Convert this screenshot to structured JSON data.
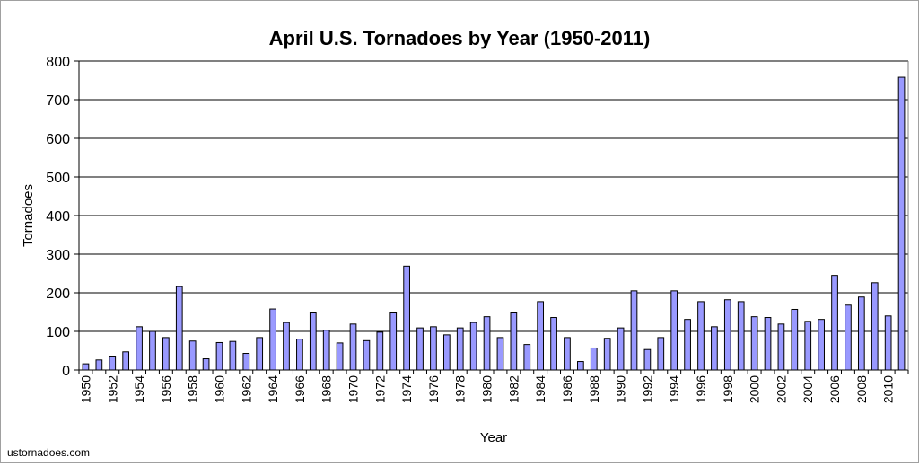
{
  "chart_data": {
    "type": "bar",
    "title": "April U.S. Tornadoes by Year (1950-2011)",
    "xlabel": "Year",
    "ylabel": "Tornadoes",
    "ylim": [
      0,
      800
    ],
    "yticks": [
      0,
      100,
      200,
      300,
      400,
      500,
      600,
      700,
      800
    ],
    "grid": true,
    "bar_color": "#9999ff",
    "categories": [
      1950,
      1951,
      1952,
      1953,
      1954,
      1955,
      1956,
      1957,
      1958,
      1959,
      1960,
      1961,
      1962,
      1963,
      1964,
      1965,
      1966,
      1967,
      1968,
      1969,
      1970,
      1971,
      1972,
      1973,
      1974,
      1975,
      1976,
      1977,
      1978,
      1979,
      1980,
      1981,
      1982,
      1983,
      1984,
      1985,
      1986,
      1987,
      1988,
      1989,
      1990,
      1991,
      1992,
      1993,
      1994,
      1995,
      1996,
      1997,
      1998,
      1999,
      2000,
      2001,
      2002,
      2003,
      2004,
      2005,
      2006,
      2007,
      2008,
      2009,
      2010,
      2011
    ],
    "values": [
      16,
      26,
      36,
      47,
      112,
      100,
      84,
      216,
      75,
      29,
      71,
      74,
      43,
      84,
      158,
      123,
      80,
      150,
      103,
      70,
      119,
      76,
      98,
      150,
      269,
      109,
      112,
      91,
      109,
      123,
      138,
      84,
      150,
      66,
      177,
      136,
      84,
      22,
      57,
      82,
      109,
      205,
      53,
      84,
      205,
      131,
      177,
      112,
      182,
      177,
      138,
      136,
      119,
      157,
      126,
      131,
      245,
      168,
      189,
      226,
      140,
      758
    ]
  },
  "source": "ustornadoes.com"
}
